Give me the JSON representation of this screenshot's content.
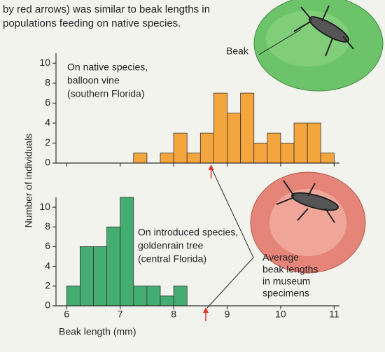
{
  "header": {
    "lines": [
      "by red arrows) was similar to beak lengths in",
      "populations feeding on native species."
    ]
  },
  "beak_label": "Beak",
  "museum_label": [
    "Average",
    "beak lengths",
    "in museum",
    "specimens"
  ],
  "ylabel": "Number of individuals",
  "chart_data": [
    {
      "type": "histogram",
      "annotation": [
        "On native species,",
        "balloon vine",
        "(southern Florida)"
      ],
      "bins": [
        7.25,
        7.5,
        7.75,
        8.0,
        8.25,
        8.5,
        8.75,
        9.0,
        9.25,
        9.5,
        9.75,
        10.0,
        10.25,
        10.5,
        10.75,
        11.0
      ],
      "counts": [
        1,
        0,
        1,
        3,
        1,
        3,
        7,
        5,
        7,
        2,
        3,
        2,
        4,
        4,
        1
      ],
      "color": "#f5a53e",
      "xlim": [
        5.8,
        11.1
      ],
      "ylim": [
        0,
        11
      ],
      "yticks": [
        0,
        2,
        4,
        6,
        8,
        10
      ],
      "arrow_x": 8.7
    },
    {
      "type": "histogram",
      "annotation": [
        "On introduced species,",
        "goldenrain tree",
        "(central Florida)"
      ],
      "bins": [
        6.0,
        6.25,
        6.5,
        6.75,
        7.0,
        7.25,
        7.5,
        7.75,
        8.0,
        8.25
      ],
      "counts": [
        2,
        6,
        6,
        8,
        11,
        2,
        2,
        1,
        2
      ],
      "color": "#43ad72",
      "xlim": [
        5.8,
        11.1
      ],
      "ylim": [
        0,
        11
      ],
      "yticks": [
        0,
        2,
        4,
        6,
        8,
        10
      ],
      "xticks": [
        6,
        7,
        8,
        9,
        10,
        11
      ],
      "xlabel": "Beak length (mm)",
      "arrow_x": 8.6
    }
  ]
}
